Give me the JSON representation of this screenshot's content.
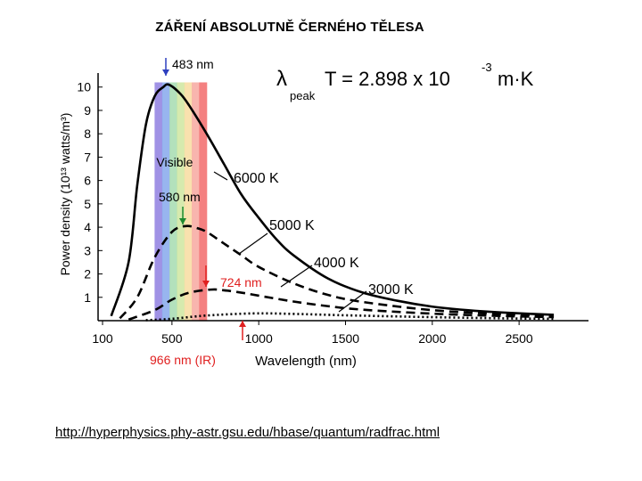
{
  "slide": {
    "title": "ZÁŘENÍ ABSOLUTNĚ ČERNÉHO TĚLESA",
    "source_url": "http://hyperphysics.phy-astr.gsu.edu/hbase/quantum/radfrac.html"
  },
  "chart_data": {
    "type": "line",
    "xlabel": "Wavelength (nm)",
    "ylabel": "Power density (10¹³ watts/m³)",
    "xlim": [
      100,
      2900
    ],
    "ylim": [
      0,
      10.6
    ],
    "x_ticks": [
      100,
      500,
      1000,
      1500,
      2000,
      2500
    ],
    "y_ticks": [
      1,
      2,
      3,
      4,
      5,
      6,
      7,
      8,
      9,
      10
    ],
    "grid": false,
    "formula": {
      "lambda": "λ",
      "subscript": "peak",
      "main": "T = 2.898  x 10",
      "exponent": "-3",
      "unit": "m·K"
    },
    "visible_band": {
      "label": "Visible",
      "range": [
        400,
        700
      ],
      "colors": [
        "#8f7fe0",
        "#86a8ec",
        "#a6dcb0",
        "#cfe6a0",
        "#f8dca0",
        "#f7a8a0",
        "#f26a6a"
      ]
    },
    "series": [
      {
        "name": "6000 K",
        "style": "solid",
        "peak_label": "483 nm",
        "peak_color": "#2d3fbf",
        "x": [
          150,
          250,
          300,
          350,
          400,
          450,
          483,
          550,
          600,
          700,
          800,
          900,
          1000,
          1100,
          1200,
          1400,
          1600,
          1800,
          2000,
          2200,
          2400,
          2700
        ],
        "y": [
          0.2,
          2.5,
          5.8,
          8.4,
          9.6,
          10.0,
          10.1,
          9.7,
          9.2,
          8.0,
          6.7,
          5.4,
          4.4,
          3.5,
          2.8,
          1.8,
          1.2,
          0.85,
          0.6,
          0.45,
          0.35,
          0.25
        ]
      },
      {
        "name": "5000 K",
        "style": "dashed",
        "peak_label": "580 nm",
        "peak_color": "#1f8a2f",
        "x": [
          200,
          300,
          400,
          500,
          580,
          650,
          700,
          800,
          900,
          1000,
          1200,
          1400,
          1600,
          2000,
          2400,
          2700
        ],
        "y": [
          0.1,
          1.0,
          2.7,
          3.8,
          4.05,
          3.95,
          3.8,
          3.3,
          2.8,
          2.3,
          1.6,
          1.1,
          0.8,
          0.45,
          0.28,
          0.2
        ]
      },
      {
        "name": "4000 K",
        "style": "dashed",
        "peak_label": "724 nm",
        "peak_color": "#e02020",
        "x": [
          250,
          400,
          500,
          600,
          724,
          800,
          900,
          1000,
          1200,
          1400,
          1600,
          2000,
          2400,
          2700
        ],
        "y": [
          0.05,
          0.45,
          0.9,
          1.2,
          1.33,
          1.3,
          1.2,
          1.07,
          0.82,
          0.62,
          0.47,
          0.3,
          0.2,
          0.15
        ]
      },
      {
        "name": "3000 K",
        "style": "dotted",
        "peak_label": "966 nm (IR)",
        "peak_color": "#e02020",
        "x": [
          350,
          500,
          700,
          966,
          1200,
          1500,
          2000,
          2400,
          2700
        ],
        "y": [
          0.02,
          0.08,
          0.22,
          0.31,
          0.29,
          0.23,
          0.15,
          0.1,
          0.08
        ]
      }
    ]
  }
}
